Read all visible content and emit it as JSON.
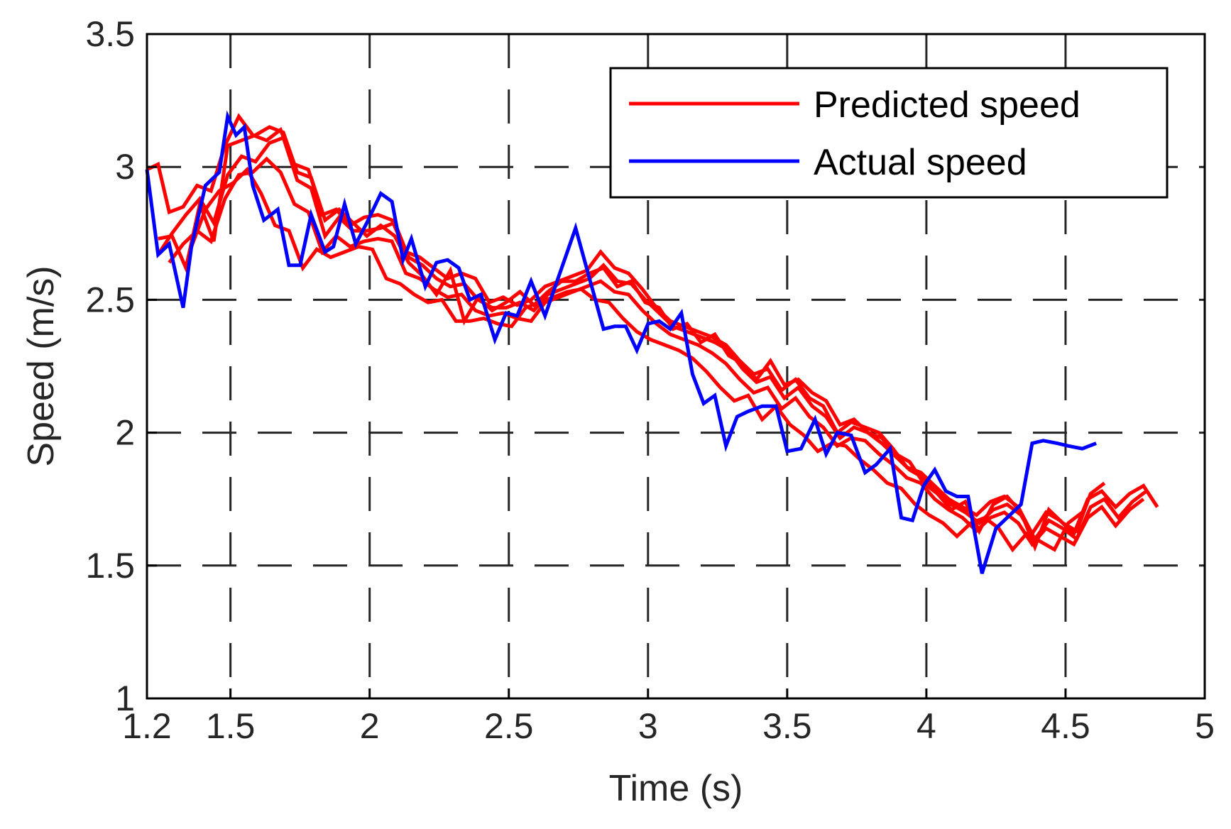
{
  "chart_data": {
    "type": "line",
    "title": "",
    "xlabel": "Time (s)",
    "ylabel": "Speed (m/s)",
    "xlim": [
      1.2,
      5
    ],
    "ylim": [
      1,
      3.5
    ],
    "xticks": [
      1.2,
      1.5,
      2,
      2.5,
      3,
      3.5,
      4,
      4.5,
      5
    ],
    "xtick_labels": [
      "1.2",
      "1.5",
      "2",
      "2.5",
      "3",
      "3.5",
      "4",
      "4.5",
      "5"
    ],
    "yticks": [
      1,
      1.5,
      2,
      2.5,
      3,
      3.5
    ],
    "ytick_labels": [
      "1",
      "1.5",
      "2",
      "2.5",
      "3",
      "3.5"
    ],
    "grid": "dashed",
    "legend": {
      "position": "top-right",
      "entries": [
        {
          "label": "Predicted speed",
          "color": "#ff0000"
        },
        {
          "label": "Actual speed",
          "color": "#0000ff"
        }
      ]
    },
    "series": [
      {
        "name": "Actual speed",
        "color": "#0000ff",
        "x": [
          1.2,
          1.24,
          1.28,
          1.33,
          1.36,
          1.41,
          1.46,
          1.49,
          1.52,
          1.55,
          1.58,
          1.62,
          1.67,
          1.71,
          1.75,
          1.79,
          1.84,
          1.87,
          1.91,
          1.95,
          1.99,
          2.04,
          2.08,
          2.12,
          2.15,
          2.2,
          2.24,
          2.28,
          2.32,
          2.36,
          2.4,
          2.45,
          2.49,
          2.53,
          2.58,
          2.63,
          2.68,
          2.74,
          2.79,
          2.84,
          2.88,
          2.92,
          2.96,
          3.0,
          3.04,
          3.08,
          3.12,
          3.16,
          3.2,
          3.24,
          3.28,
          3.32,
          3.36,
          3.41,
          3.46,
          3.5,
          3.55,
          3.6,
          3.64,
          3.68,
          3.73,
          3.78,
          3.82,
          3.87,
          3.91,
          3.95,
          3.99,
          4.03,
          4.07,
          4.11,
          4.15,
          4.2,
          4.25,
          4.29,
          4.34,
          4.38,
          4.42,
          4.47,
          4.51,
          4.56,
          4.61
        ],
        "y": [
          2.99,
          2.67,
          2.71,
          2.47,
          2.7,
          2.93,
          2.98,
          3.19,
          3.12,
          3.15,
          2.93,
          2.8,
          2.84,
          2.63,
          2.63,
          2.82,
          2.68,
          2.7,
          2.86,
          2.71,
          2.79,
          2.9,
          2.87,
          2.65,
          2.73,
          2.55,
          2.64,
          2.65,
          2.62,
          2.5,
          2.52,
          2.35,
          2.45,
          2.44,
          2.57,
          2.44,
          2.59,
          2.77,
          2.58,
          2.39,
          2.4,
          2.4,
          2.31,
          2.41,
          2.42,
          2.39,
          2.45,
          2.22,
          2.11,
          2.14,
          1.95,
          2.06,
          2.08,
          2.1,
          2.1,
          1.93,
          1.94,
          2.05,
          1.92,
          2.0,
          1.99,
          1.85,
          1.88,
          1.94,
          1.68,
          1.67,
          1.8,
          1.86,
          1.78,
          1.76,
          1.76,
          1.47,
          1.64,
          1.68,
          1.73,
          1.96,
          1.97,
          1.96,
          1.95,
          1.94,
          1.96
        ]
      },
      {
        "name": "Predicted speed 1",
        "color": "#ff0000",
        "x": [
          1.2,
          1.24,
          1.28,
          1.33,
          1.38,
          1.43,
          1.48,
          1.53,
          1.58,
          1.63,
          1.68,
          1.73,
          1.78,
          1.83,
          1.88,
          1.93,
          1.98,
          2.03,
          2.08,
          2.13,
          2.18,
          2.23,
          2.28,
          2.33,
          2.38,
          2.43,
          2.48,
          2.53,
          2.58,
          2.63,
          2.68,
          2.73,
          2.78,
          2.83,
          2.88,
          2.93,
          2.98,
          3.03,
          3.08,
          3.13,
          3.18,
          3.23,
          3.28,
          3.33,
          3.38,
          3.43,
          3.48,
          3.53,
          3.58,
          3.63,
          3.68,
          3.73,
          3.78,
          3.83,
          3.88,
          3.93,
          3.98,
          4.03,
          4.08,
          4.13,
          4.18,
          4.23,
          4.28,
          4.33,
          4.38,
          4.43,
          4.48,
          4.53,
          4.58,
          4.63,
          4.68,
          4.73,
          4.78,
          4.83
        ],
        "y": [
          2.99,
          3.01,
          2.83,
          2.85,
          2.93,
          2.91,
          3.08,
          3.19,
          3.12,
          3.1,
          3.14,
          3.01,
          2.99,
          2.82,
          2.84,
          2.78,
          2.81,
          2.82,
          2.8,
          2.68,
          2.66,
          2.62,
          2.58,
          2.6,
          2.58,
          2.49,
          2.51,
          2.48,
          2.5,
          2.55,
          2.57,
          2.59,
          2.61,
          2.68,
          2.62,
          2.6,
          2.54,
          2.47,
          2.42,
          2.4,
          2.38,
          2.36,
          2.33,
          2.27,
          2.22,
          2.24,
          2.16,
          2.2,
          2.13,
          2.1,
          2.0,
          2.04,
          2.02,
          2.0,
          1.94,
          1.87,
          1.85,
          1.8,
          1.75,
          1.72,
          1.69,
          1.74,
          1.76,
          1.72,
          1.62,
          1.7,
          1.67,
          1.62,
          1.75,
          1.78,
          1.72,
          1.77,
          1.8,
          1.72
        ]
      },
      {
        "name": "Predicted speed 2",
        "color": "#ff0000",
        "x": [
          1.24,
          1.29,
          1.34,
          1.39,
          1.44,
          1.49,
          1.54,
          1.59,
          1.64,
          1.69,
          1.74,
          1.79,
          1.84,
          1.89,
          1.94,
          1.99,
          2.04,
          2.09,
          2.14,
          2.19,
          2.24,
          2.29,
          2.34,
          2.39,
          2.44,
          2.49,
          2.54,
          2.59,
          2.64,
          2.69,
          2.74,
          2.79,
          2.84,
          2.89,
          2.94,
          2.99,
          3.04,
          3.09,
          3.14,
          3.19,
          3.24,
          3.29,
          3.34,
          3.39,
          3.44,
          3.49,
          3.54,
          3.59,
          3.64,
          3.69,
          3.74,
          3.79,
          3.84,
          3.89,
          3.94,
          3.99,
          4.04,
          4.09,
          4.14,
          4.19,
          4.24,
          4.29,
          4.34,
          4.39,
          4.44,
          4.49,
          4.54,
          4.59,
          4.64,
          4.69,
          4.74,
          4.79
        ],
        "y": [
          2.67,
          2.75,
          2.82,
          2.88,
          2.79,
          2.97,
          3.04,
          3.02,
          3.09,
          3.11,
          2.95,
          2.92,
          2.74,
          2.81,
          2.76,
          2.76,
          2.77,
          2.79,
          2.66,
          2.63,
          2.58,
          2.55,
          2.56,
          2.5,
          2.47,
          2.47,
          2.49,
          2.46,
          2.52,
          2.54,
          2.56,
          2.58,
          2.63,
          2.57,
          2.56,
          2.5,
          2.45,
          2.4,
          2.38,
          2.36,
          2.34,
          2.31,
          2.24,
          2.19,
          2.21,
          2.13,
          2.17,
          2.1,
          2.06,
          1.98,
          2.02,
          2.0,
          1.96,
          1.91,
          1.86,
          1.83,
          1.78,
          1.73,
          1.7,
          1.66,
          1.71,
          1.73,
          1.69,
          1.6,
          1.67,
          1.64,
          1.6,
          1.72,
          1.75,
          1.68,
          1.74,
          1.78
        ]
      },
      {
        "name": "Predicted speed 3",
        "color": "#ff0000",
        "x": [
          1.28,
          1.33,
          1.38,
          1.43,
          1.48,
          1.53,
          1.58,
          1.63,
          1.68,
          1.73,
          1.78,
          1.83,
          1.88,
          1.93,
          1.98,
          2.03,
          2.08,
          2.13,
          2.18,
          2.23,
          2.28,
          2.33,
          2.38,
          2.43,
          2.48,
          2.53,
          2.58,
          2.63,
          2.68,
          2.73,
          2.78,
          2.83,
          2.88,
          2.93,
          2.98,
          3.03,
          3.08,
          3.13,
          3.18,
          3.23,
          3.28,
          3.33,
          3.38,
          3.43,
          3.48,
          3.53,
          3.58,
          3.63,
          3.68,
          3.73,
          3.78,
          3.83,
          3.88,
          3.93,
          3.98,
          4.03,
          4.08,
          4.13,
          4.18,
          4.23,
          4.28,
          4.33,
          4.38,
          4.43,
          4.48,
          4.53,
          4.58,
          4.63,
          4.68,
          4.73,
          4.78
        ],
        "y": [
          2.64,
          2.71,
          2.76,
          2.72,
          2.88,
          2.97,
          2.98,
          3.03,
          2.98,
          2.86,
          2.83,
          2.68,
          2.74,
          2.7,
          2.72,
          2.73,
          2.72,
          2.6,
          2.58,
          2.54,
          2.51,
          2.52,
          2.46,
          2.44,
          2.45,
          2.43,
          2.42,
          2.49,
          2.51,
          2.53,
          2.55,
          2.57,
          2.53,
          2.52,
          2.46,
          2.41,
          2.37,
          2.35,
          2.33,
          2.3,
          2.26,
          2.2,
          2.15,
          2.17,
          2.09,
          2.13,
          2.06,
          2.02,
          1.95,
          1.98,
          1.97,
          1.92,
          1.88,
          1.83,
          1.81,
          1.75,
          1.71,
          1.68,
          1.63,
          1.68,
          1.7,
          1.66,
          1.58,
          1.64,
          1.61,
          1.58,
          1.68,
          1.72,
          1.65,
          1.71,
          1.75
        ]
      },
      {
        "name": "Predicted speed 4",
        "color": "#ff0000",
        "x": [
          1.36,
          1.41,
          1.46,
          1.51,
          1.56,
          1.61,
          1.66,
          1.71,
          1.76,
          1.81,
          1.86,
          1.91,
          1.96,
          2.01,
          2.06,
          2.11,
          2.16,
          2.21,
          2.26,
          2.31,
          2.36,
          2.41,
          2.46,
          2.51,
          2.56,
          2.61,
          2.66,
          2.71,
          2.76,
          2.81,
          2.86,
          2.91,
          2.96,
          3.01,
          3.06,
          3.11,
          3.16,
          3.21,
          3.26,
          3.31,
          3.36,
          3.41,
          3.46,
          3.51,
          3.56,
          3.61,
          3.66,
          3.71,
          3.76,
          3.81,
          3.86,
          3.91,
          3.96,
          4.01,
          4.06,
          4.11,
          4.16,
          4.21,
          4.26,
          4.31,
          4.36,
          4.41,
          4.46,
          4.51,
          4.56
        ],
        "y": [
          2.7,
          2.84,
          2.91,
          2.94,
          2.99,
          2.9,
          2.78,
          2.76,
          2.62,
          2.69,
          2.66,
          2.68,
          2.7,
          2.69,
          2.58,
          2.56,
          2.52,
          2.49,
          2.5,
          2.42,
          2.42,
          2.43,
          2.41,
          2.4,
          2.47,
          2.49,
          2.51,
          2.53,
          2.54,
          2.5,
          2.49,
          2.43,
          2.38,
          2.35,
          2.33,
          2.31,
          2.28,
          2.23,
          2.17,
          2.12,
          2.14,
          2.05,
          2.1,
          2.03,
          1.99,
          1.93,
          1.96,
          1.95,
          1.9,
          1.86,
          1.81,
          1.79,
          1.73,
          1.69,
          1.66,
          1.61,
          1.66,
          1.68,
          1.64,
          1.56,
          1.62,
          1.59,
          1.56,
          1.66,
          1.7
        ]
      },
      {
        "name": "Predicted speed 5",
        "color": "#ff0000",
        "x": [
          1.24,
          1.29,
          1.34,
          1.39,
          1.44,
          1.49,
          1.54,
          1.59,
          1.64,
          1.69,
          1.74,
          1.79,
          1.84,
          1.89,
          1.94,
          1.99,
          2.04,
          2.09,
          2.14,
          2.19,
          2.24,
          2.29,
          2.34,
          2.39,
          2.44,
          2.49,
          2.54,
          2.59,
          2.64,
          2.69,
          2.74,
          2.79,
          2.84,
          2.89,
          2.94,
          2.99,
          3.04,
          3.09,
          3.14,
          3.19,
          3.24,
          3.29,
          3.34,
          3.39,
          3.44,
          3.49,
          3.54,
          3.59,
          3.64,
          3.69,
          3.74,
          3.79,
          3.84,
          3.89,
          3.94,
          3.99,
          4.04,
          4.09,
          4.14,
          4.19,
          4.24,
          4.29,
          4.34,
          4.39,
          4.44,
          4.49,
          4.54,
          4.59,
          4.64
        ],
        "y": [
          2.73,
          2.74,
          2.62,
          2.86,
          2.72,
          3.08,
          3.1,
          3.12,
          3.15,
          3.13,
          2.98,
          2.96,
          2.8,
          2.84,
          2.79,
          2.74,
          2.78,
          2.74,
          2.64,
          2.59,
          2.52,
          2.61,
          2.42,
          2.51,
          2.46,
          2.49,
          2.53,
          2.48,
          2.53,
          2.57,
          2.57,
          2.6,
          2.62,
          2.55,
          2.57,
          2.49,
          2.47,
          2.39,
          2.41,
          2.34,
          2.37,
          2.29,
          2.26,
          2.2,
          2.27,
          2.18,
          2.2,
          2.15,
          2.12,
          2.03,
          2.05,
          2.0,
          1.98,
          1.92,
          1.89,
          1.81,
          1.77,
          1.71,
          1.74,
          1.63,
          1.73,
          1.76,
          1.7,
          1.57,
          1.71,
          1.66,
          1.63,
          1.77,
          1.81
        ]
      }
    ]
  }
}
